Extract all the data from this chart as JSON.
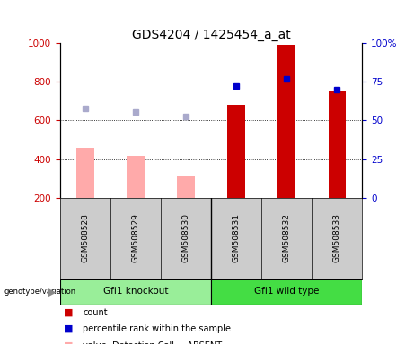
{
  "title": "GDS4204 / 1425454_a_at",
  "samples": [
    "GSM508528",
    "GSM508529",
    "GSM508530",
    "GSM508531",
    "GSM508532",
    "GSM508533"
  ],
  "group_labels": [
    "Gfi1 knockout",
    "Gfi1 wild type"
  ],
  "count_values": [
    null,
    null,
    null,
    680,
    990,
    750
  ],
  "percentile_rank": [
    null,
    null,
    null,
    72,
    77,
    70
  ],
  "absent_value": [
    460,
    415,
    315,
    null,
    null,
    null
  ],
  "absent_rank": [
    660,
    645,
    620,
    null,
    null,
    null
  ],
  "ylim_left": [
    200,
    1000
  ],
  "ylim_right": [
    0,
    100
  ],
  "yticks_left": [
    200,
    400,
    600,
    800,
    1000
  ],
  "yticks_right": [
    0,
    25,
    50,
    75,
    100
  ],
  "ytick_labels_right": [
    "0",
    "25",
    "50",
    "75",
    "100%"
  ],
  "bar_width": 0.35,
  "count_color": "#cc0000",
  "percentile_color": "#0000cc",
  "absent_value_color": "#ffaaaa",
  "absent_rank_color": "#aaaacc",
  "background_label": "#cccccc",
  "background_group1": "#99ee99",
  "background_group2": "#44dd44",
  "title_fontsize": 10,
  "tick_fontsize": 7.5,
  "sample_fontsize": 6.5,
  "group_fontsize": 7.5,
  "legend_fontsize": 7,
  "grid_dotted_ticks": [
    400,
    600,
    800
  ]
}
